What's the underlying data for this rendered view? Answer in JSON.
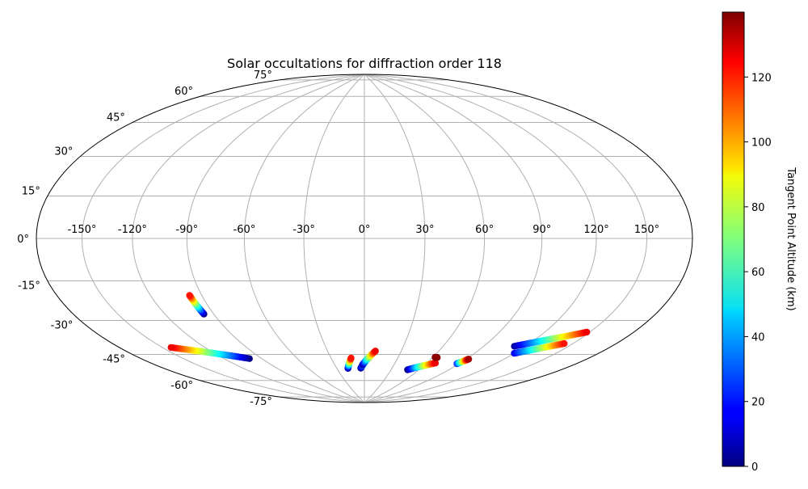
{
  "chart_data": {
    "type": "scatter",
    "projection": "aitoff/hammer world map",
    "title": "Solar occultations for diffraction order 118",
    "lon_ticks": [
      "-150°",
      "-120°",
      "-90°",
      "-60°",
      "-30°",
      "0°",
      "30°",
      "60°",
      "90°",
      "120°",
      "150°"
    ],
    "lon_tick_values": [
      -150,
      -120,
      -90,
      -60,
      -30,
      0,
      30,
      60,
      90,
      120,
      150
    ],
    "lat_ticks": [
      "75°",
      "60°",
      "45°",
      "30°",
      "15°",
      "0°",
      "-15°",
      "-30°",
      "-45°",
      "-60°",
      "-75°"
    ],
    "lat_tick_values": [
      75,
      60,
      45,
      30,
      15,
      0,
      -15,
      -30,
      -45,
      -60,
      -75
    ],
    "grid": true,
    "colorbar": {
      "label": "Tangent Point Altitude (km)",
      "colormap": "jet",
      "range": [
        0,
        140
      ],
      "ticks": [
        "0",
        "20",
        "40",
        "60",
        "80",
        "100",
        "120"
      ],
      "tick_values": [
        0,
        20,
        40,
        60,
        80,
        100,
        120
      ]
    },
    "tracks": [
      {
        "start": [
          -96,
          -35
        ],
        "end": [
          -97,
          -26
        ],
        "alt_start": 0,
        "alt_end": 120
      },
      {
        "start": [
          -100,
          -58
        ],
        "end": [
          -144,
          -47
        ],
        "alt_start": 0,
        "alt_end": 125
      },
      {
        "start": [
          -18,
          -68
        ],
        "end": [
          -12,
          -62
        ],
        "alt_start": 0,
        "alt_end": 120
      },
      {
        "start": [
          -4,
          -68
        ],
        "end": [
          5,
          -61
        ],
        "alt_start": 0,
        "alt_end": 120
      },
      {
        "start": [
          -2,
          -66
        ],
        "end": [
          9,
          -58
        ],
        "alt_start": 0,
        "alt_end": 125
      },
      {
        "start": [
          48,
          -68
        ],
        "end": [
          68,
          -63
        ],
        "alt_start": 0,
        "alt_end": 125
      },
      {
        "start": [
          62,
          -60
        ],
        "end": [
          64,
          -60
        ],
        "alt_start": 138,
        "alt_end": 138
      },
      {
        "start": [
          88,
          -62
        ],
        "end": [
          92,
          -59
        ],
        "alt_start": 20,
        "alt_end": 135
      },
      {
        "start": [
          112,
          -50
        ],
        "end": [
          148,
          -39
        ],
        "alt_start": 5,
        "alt_end": 125
      },
      {
        "start": [
          120,
          -53
        ],
        "end": [
          144,
          -45
        ],
        "alt_start": 15,
        "alt_end": 120
      }
    ]
  }
}
